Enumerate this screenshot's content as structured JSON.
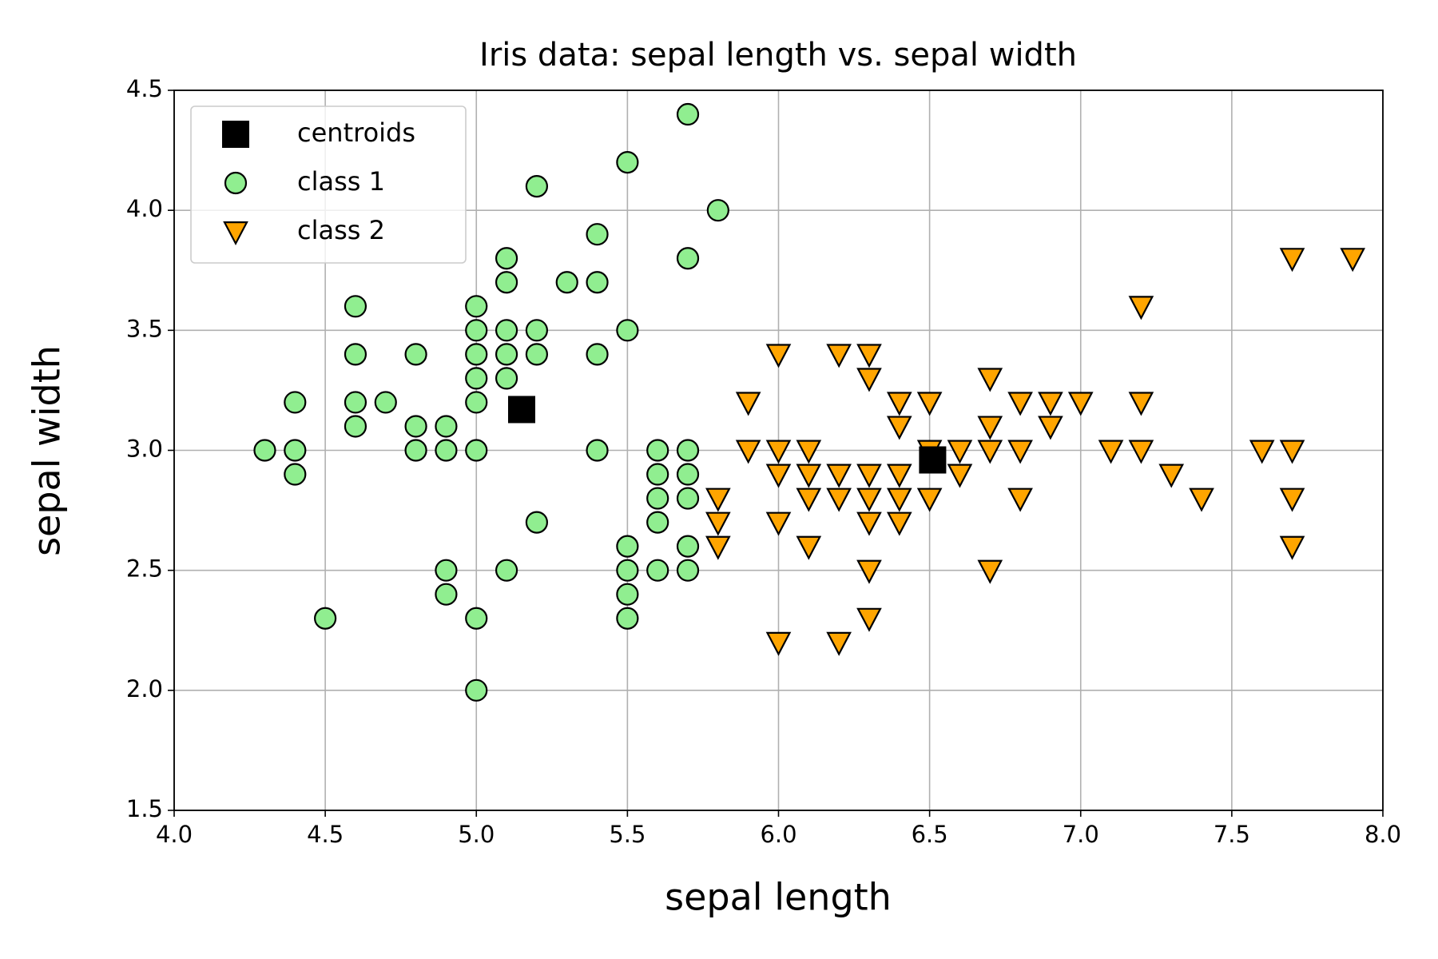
{
  "chart_data": {
    "type": "scatter",
    "title": "Iris data: sepal length vs. sepal width",
    "xlabel": "sepal length",
    "ylabel": "sepal width",
    "xlim": [
      4.0,
      8.0
    ],
    "ylim": [
      1.5,
      4.5
    ],
    "xticks": [
      {
        "value": 4,
        "label": "4.0"
      },
      4.5,
      {
        "value": 5,
        "label": "5.0"
      },
      5.5,
      {
        "value": 6,
        "label": "6.0"
      },
      6.5,
      {
        "value": 7,
        "label": "7.0"
      },
      7.5,
      {
        "value": 8,
        "label": "8.0"
      }
    ],
    "yticks": [
      1.5,
      {
        "value": 2,
        "label": "2.0"
      },
      2.5,
      {
        "value": 3,
        "label": "3.0"
      },
      3.5,
      {
        "value": 4,
        "label": "4.0"
      },
      4.5
    ],
    "grid": true,
    "legend": "upper left",
    "series": [
      {
        "name": "centroids",
        "color": "#000000",
        "marker": "square",
        "x": [
          5.15,
          6.51
        ],
        "y": [
          3.17,
          2.96
        ]
      },
      {
        "name": "class 1",
        "color": "#90ee90",
        "marker": "circle",
        "x": [
          4.3,
          4.4,
          4.4,
          4.4,
          4.5,
          4.6,
          4.6,
          4.6,
          4.6,
          4.7,
          4.8,
          4.8,
          4.8,
          4.9,
          4.9,
          4.9,
          4.9,
          5.0,
          5.0,
          5.0,
          5.0,
          5.0,
          5.0,
          5.0,
          5.0,
          5.1,
          5.1,
          5.1,
          5.1,
          5.1,
          5.1,
          5.2,
          5.2,
          5.2,
          5.2,
          5.3,
          5.4,
          5.4,
          5.4,
          5.4,
          5.5,
          5.5,
          5.5,
          5.5,
          5.5,
          5.5,
          5.6,
          5.6,
          5.6,
          5.6,
          5.6,
          5.7,
          5.7,
          5.7,
          5.7,
          5.7,
          5.7,
          5.7,
          5.8
        ],
        "y": [
          3.0,
          3.2,
          3.0,
          2.9,
          2.3,
          3.6,
          3.4,
          3.2,
          3.1,
          3.2,
          3.4,
          3.1,
          3.0,
          3.1,
          3.0,
          2.5,
          2.4,
          3.6,
          3.5,
          3.4,
          3.3,
          3.2,
          3.0,
          2.3,
          2.0,
          3.8,
          3.7,
          3.5,
          3.4,
          3.3,
          2.5,
          4.1,
          3.5,
          3.4,
          2.7,
          3.7,
          3.9,
          3.7,
          3.4,
          3.0,
          4.2,
          3.5,
          2.6,
          2.5,
          2.4,
          2.3,
          3.0,
          2.9,
          2.8,
          2.7,
          2.5,
          4.4,
          3.8,
          3.0,
          2.9,
          2.8,
          2.6,
          2.5,
          4.0
        ]
      },
      {
        "name": "class 2",
        "color": "#ffa500",
        "marker": "triangle_down",
        "x": [
          5.8,
          5.8,
          5.8,
          5.9,
          5.9,
          6.0,
          6.0,
          6.0,
          6.0,
          6.0,
          6.1,
          6.1,
          6.1,
          6.1,
          6.2,
          6.2,
          6.2,
          6.2,
          6.3,
          6.3,
          6.3,
          6.3,
          6.3,
          6.3,
          6.3,
          6.4,
          6.4,
          6.4,
          6.4,
          6.4,
          6.5,
          6.5,
          6.5,
          6.6,
          6.6,
          6.7,
          6.7,
          6.7,
          6.7,
          6.8,
          6.8,
          6.8,
          6.9,
          6.9,
          7.0,
          7.1,
          7.2,
          7.2,
          7.2,
          7.3,
          7.4,
          7.6,
          7.7,
          7.7,
          7.7,
          7.7,
          7.9
        ],
        "y": [
          2.8,
          2.7,
          2.6,
          3.2,
          3.0,
          3.4,
          3.0,
          2.9,
          2.7,
          2.2,
          3.0,
          2.9,
          2.8,
          2.6,
          3.4,
          2.9,
          2.8,
          2.2,
          3.4,
          3.3,
          2.9,
          2.8,
          2.7,
          2.5,
          2.3,
          3.2,
          3.1,
          2.9,
          2.8,
          2.7,
          3.2,
          3.0,
          2.8,
          3.0,
          2.9,
          3.3,
          3.1,
          3.0,
          2.5,
          3.2,
          3.0,
          2.8,
          3.2,
          3.1,
          3.2,
          3.0,
          3.6,
          3.2,
          3.0,
          2.9,
          2.8,
          3.0,
          3.8,
          3.0,
          2.8,
          2.6,
          3.8
        ]
      }
    ]
  }
}
